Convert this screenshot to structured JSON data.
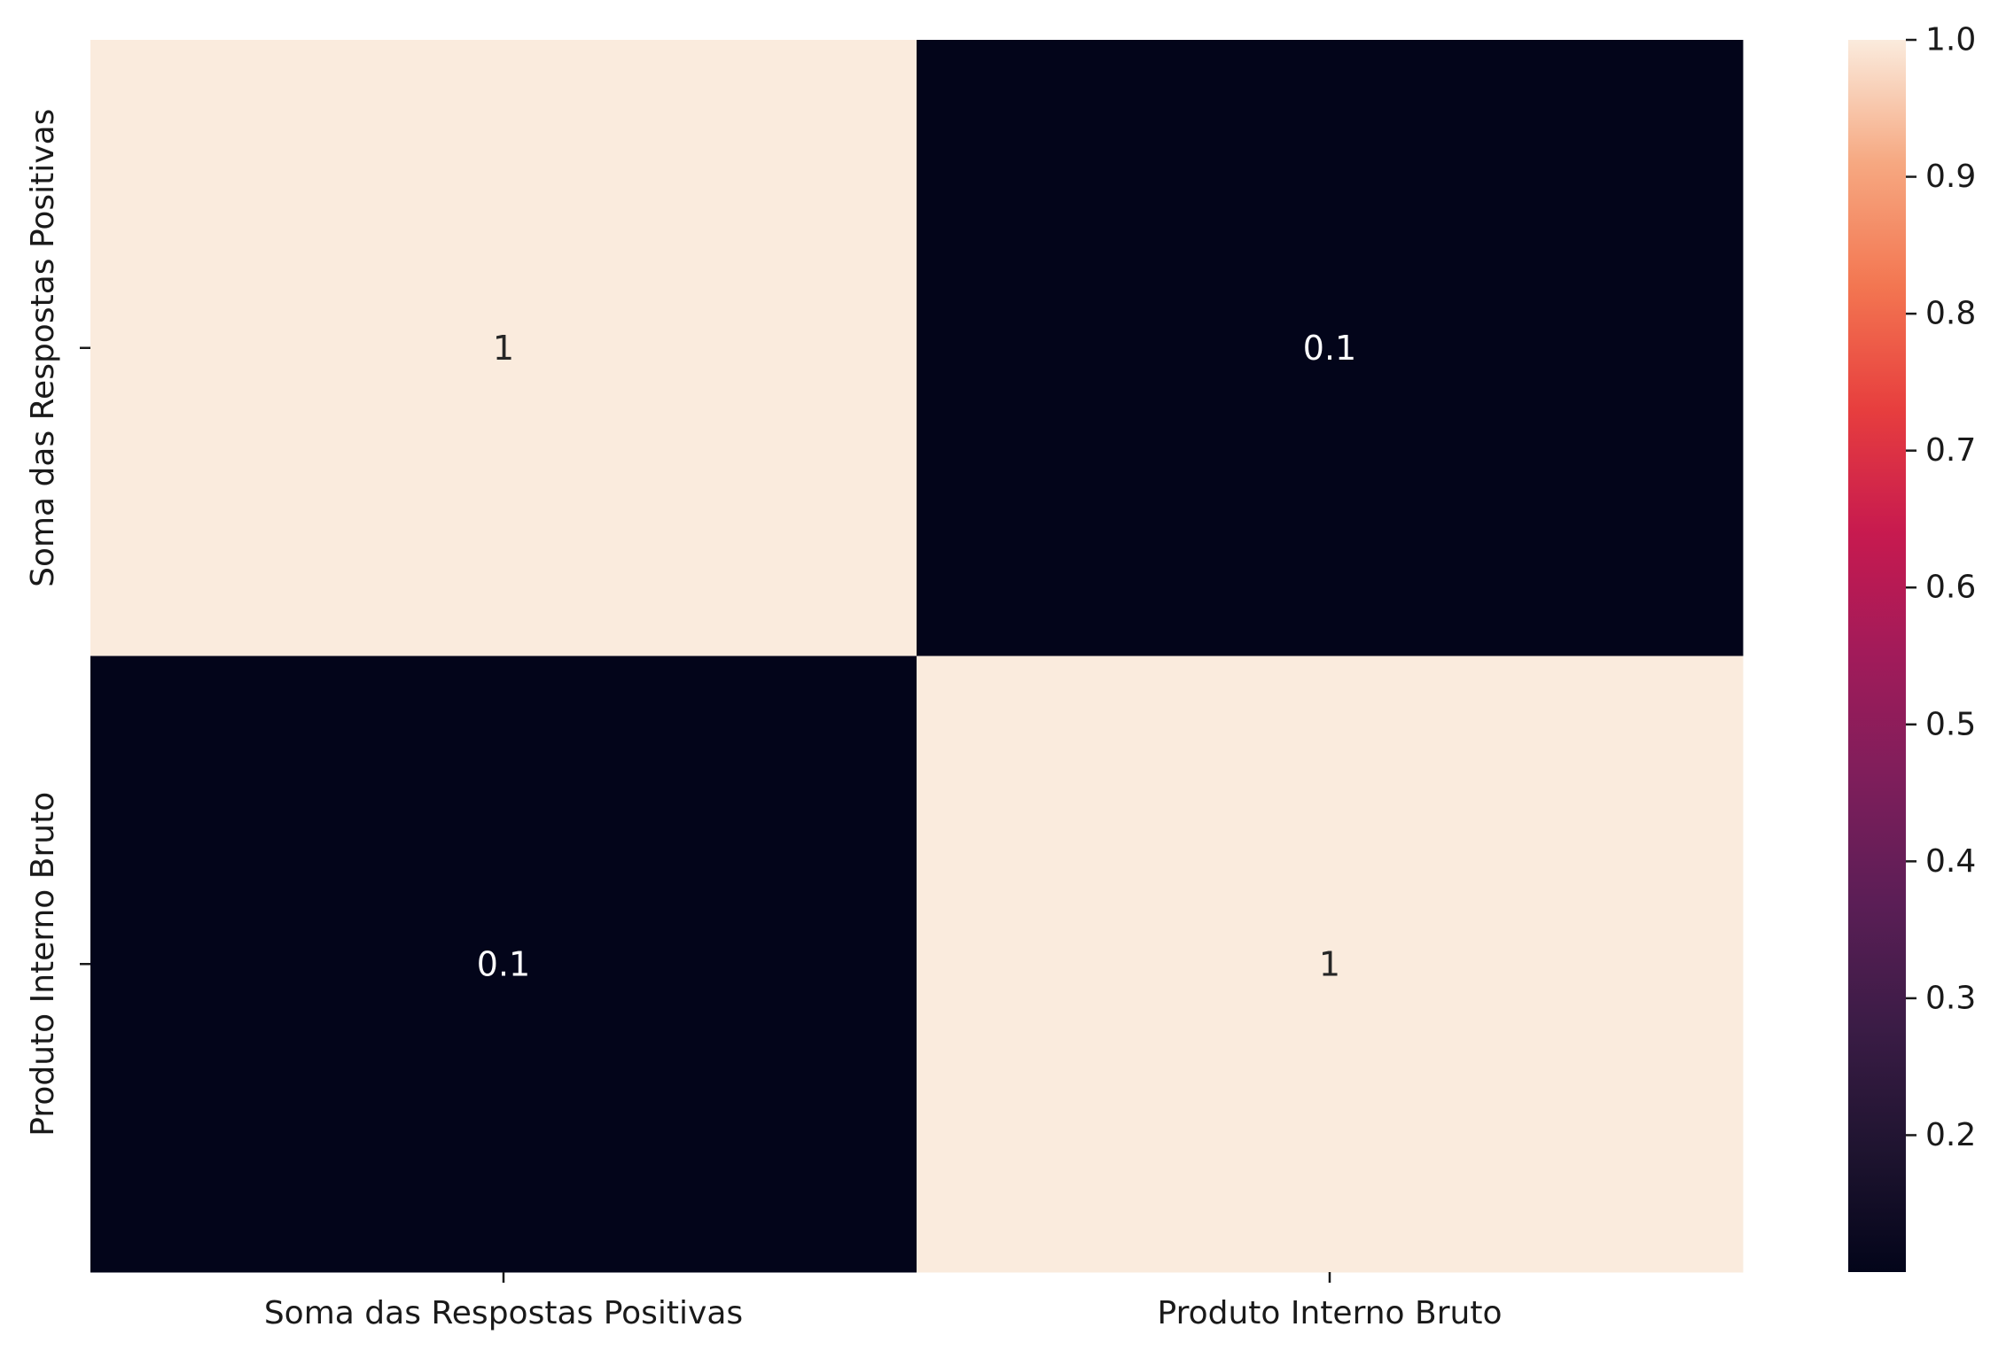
{
  "chart_data": {
    "type": "heatmap",
    "title": "",
    "xlabel": "",
    "ylabel": "",
    "x_categories": [
      "Soma das Respostas Positivas",
      "Produto Interno Bruto"
    ],
    "y_categories": [
      "Soma das Respostas Positivas",
      "Produto Interno Bruto"
    ],
    "values": [
      [
        1,
        0.1
      ],
      [
        0.1,
        1
      ]
    ],
    "annotations": [
      [
        "1",
        "0.1"
      ],
      [
        "0.1",
        "1"
      ]
    ],
    "colormap": "rocket",
    "colorbar": {
      "vmin": 0.1,
      "vmax": 1.0,
      "ticks": [
        0.2,
        0.3,
        0.4,
        0.5,
        0.6,
        0.7,
        0.8,
        0.9,
        1.0
      ],
      "tick_labels": [
        "0.2",
        "0.3",
        "0.4",
        "0.5",
        "0.6",
        "0.7",
        "0.8",
        "0.9",
        "1.0"
      ],
      "placement": "right"
    },
    "grid": false,
    "colors": {
      "low": "#03051a",
      "high": "#faebdd",
      "annotation_on_light": "#262626",
      "annotation_on_dark": "#ffffff"
    }
  }
}
